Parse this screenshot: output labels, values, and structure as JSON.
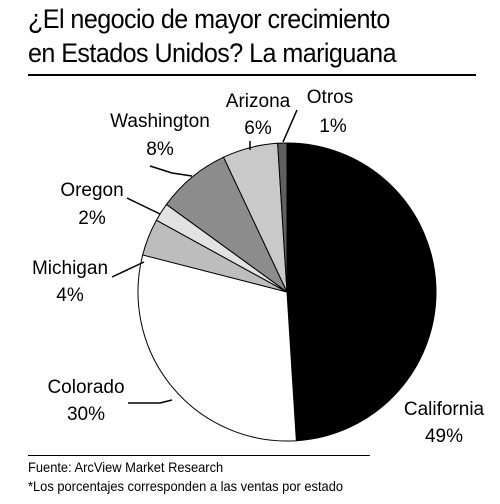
{
  "title_line1": "¿El negocio de mayor crecimiento",
  "title_line2": "en Estados Unidos? La mariguana",
  "source": "Fuente: ArcView Market Research",
  "note": "*Los porcentajes corresponden a las ventas por estado",
  "chart_data": {
    "type": "pie",
    "title": "¿El negocio de mayor crecimiento en Estados Unidos? La mariguana",
    "slices": [
      {
        "name": "California",
        "value": 49,
        "label": "49%",
        "color": "#000000"
      },
      {
        "name": "Colorado",
        "value": 30,
        "label": "30%",
        "color": "#ffffff"
      },
      {
        "name": "Michigan",
        "value": 4,
        "label": "4%",
        "color": "#bdbdbd"
      },
      {
        "name": "Oregon",
        "value": 2,
        "label": "2%",
        "color": "#e2e2e2"
      },
      {
        "name": "Washington",
        "value": 8,
        "label": "8%",
        "color": "#8c8c8c"
      },
      {
        "name": "Arizona",
        "value": 6,
        "label": "6%",
        "color": "#c9c9c9"
      },
      {
        "name": "Otros",
        "value": 1,
        "label": "1%",
        "color": "#5f5f5f"
      }
    ]
  }
}
